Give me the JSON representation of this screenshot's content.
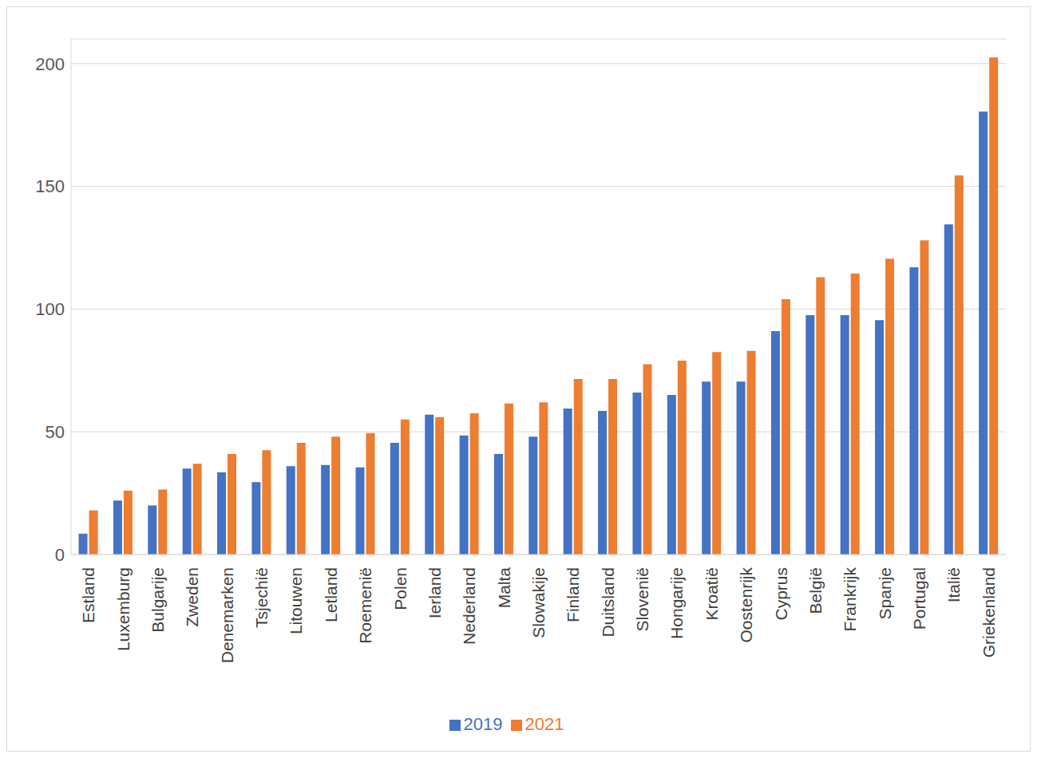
{
  "chart_data": {
    "type": "bar",
    "categories": [
      "Estland",
      "Luxemburg",
      "Bulgarije",
      "Zweden",
      "Denemarken",
      "Tsjechië",
      "Litouwen",
      "Letland",
      "Roemenië",
      "Polen",
      "Ierland",
      "Nederland",
      "Malta",
      "Slowakije",
      "Finland",
      "Duitsland",
      "Slovenië",
      "Hongarije",
      "Kroatië",
      "Oostenrijk",
      "Cyprus",
      "België",
      "Frankrijk",
      "Spanje",
      "Portugal",
      "Italië",
      "Griekenland"
    ],
    "series": [
      {
        "name": "2019",
        "color": "#4472c4",
        "values": [
          8.5,
          22,
          20,
          35,
          33.5,
          29.5,
          36,
          36.5,
          35.5,
          45.5,
          57,
          48.5,
          41,
          48,
          59.5,
          58.5,
          66,
          65,
          70.5,
          70.5,
          91,
          97.5,
          97.5,
          95.5,
          117,
          134.5,
          180.5
        ]
      },
      {
        "name": "2021",
        "color": "#ed7d31",
        "values": [
          18,
          26,
          26.5,
          37,
          41,
          42.5,
          45.5,
          48,
          49.5,
          55,
          56,
          57.5,
          61.5,
          62,
          71.5,
          71.5,
          77.5,
          79,
          82.5,
          83,
          104,
          113,
          114.5,
          120.5,
          128,
          154.5,
          202.5
        ]
      }
    ],
    "ylim": [
      0,
      210
    ],
    "yticks": [
      0,
      50,
      100,
      150,
      200
    ],
    "grid": true,
    "legend": "bottom"
  }
}
